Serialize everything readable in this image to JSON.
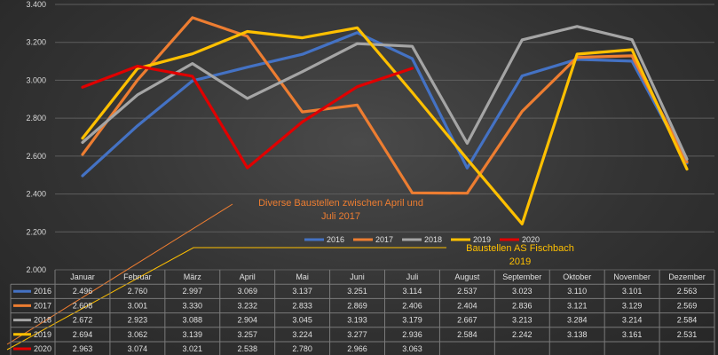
{
  "chart_data": {
    "type": "line",
    "categories": [
      "Januar",
      "Februar",
      "März",
      "April",
      "Mai",
      "Juni",
      "Juli",
      "August",
      "September",
      "Oktober",
      "November",
      "Dezember"
    ],
    "ylim": [
      2000,
      3400
    ],
    "yticks": [
      "2.000",
      "2.200",
      "2.400",
      "2.600",
      "2.800",
      "3.000",
      "3.200",
      "3.400"
    ],
    "series": [
      {
        "name": "2016",
        "color": "#4472c4",
        "values": [
          2496,
          2760,
          2997,
          3069,
          3137,
          3251,
          3114,
          2537,
          3023,
          3110,
          3101,
          2563
        ],
        "labels": [
          "2.496",
          "2.760",
          "2.997",
          "3.069",
          "3.137",
          "3.251",
          "3.114",
          "2.537",
          "3.023",
          "3.110",
          "3.101",
          "2.563"
        ]
      },
      {
        "name": "2017",
        "color": "#ed7d31",
        "values": [
          2608,
          3001,
          3330,
          3232,
          2833,
          2869,
          2406,
          2404,
          2836,
          3121,
          3129,
          2569
        ],
        "labels": [
          "2.608",
          "3.001",
          "3.330",
          "3.232",
          "2.833",
          "2.869",
          "2.406",
          "2.404",
          "2.836",
          "3.121",
          "3.129",
          "2.569"
        ]
      },
      {
        "name": "2018",
        "color": "#a5a5a5",
        "values": [
          2672,
          2923,
          3088,
          2904,
          3045,
          3193,
          3179,
          2667,
          3213,
          3284,
          3214,
          2584
        ],
        "labels": [
          "2.672",
          "2.923",
          "3.088",
          "2.904",
          "3.045",
          "3.193",
          "3.179",
          "2.667",
          "3.213",
          "3.284",
          "3.214",
          "2.584"
        ]
      },
      {
        "name": "2019",
        "color": "#ffc000",
        "values": [
          2694,
          3062,
          3139,
          3257,
          3224,
          3277,
          2936,
          2584,
          2242,
          3138,
          3161,
          2531
        ],
        "labels": [
          "2.694",
          "3.062",
          "3.139",
          "3.257",
          "3.224",
          "3.277",
          "2.936",
          "2.584",
          "2.242",
          "3.138",
          "3.161",
          "2.531"
        ]
      },
      {
        "name": "2020",
        "color": "#e00000",
        "values": [
          2963,
          3074,
          3021,
          2538,
          2780,
          2966,
          3063,
          null,
          null,
          null,
          null,
          null
        ],
        "labels": [
          "2.963",
          "3.074",
          "3.021",
          "2.538",
          "2.780",
          "2.966",
          "3.063",
          "",
          "",
          "",
          "",
          ""
        ]
      }
    ],
    "annotations": [
      {
        "text_lines": [
          "Diverse Baustellen zwischen April und",
          "Juli 2017"
        ],
        "color": "#ed7d31"
      },
      {
        "text_lines": [
          "Baustellen AS Fischbach",
          "2019"
        ],
        "color": "#ffc000"
      }
    ],
    "legend": "bottom-center",
    "grid": true
  }
}
